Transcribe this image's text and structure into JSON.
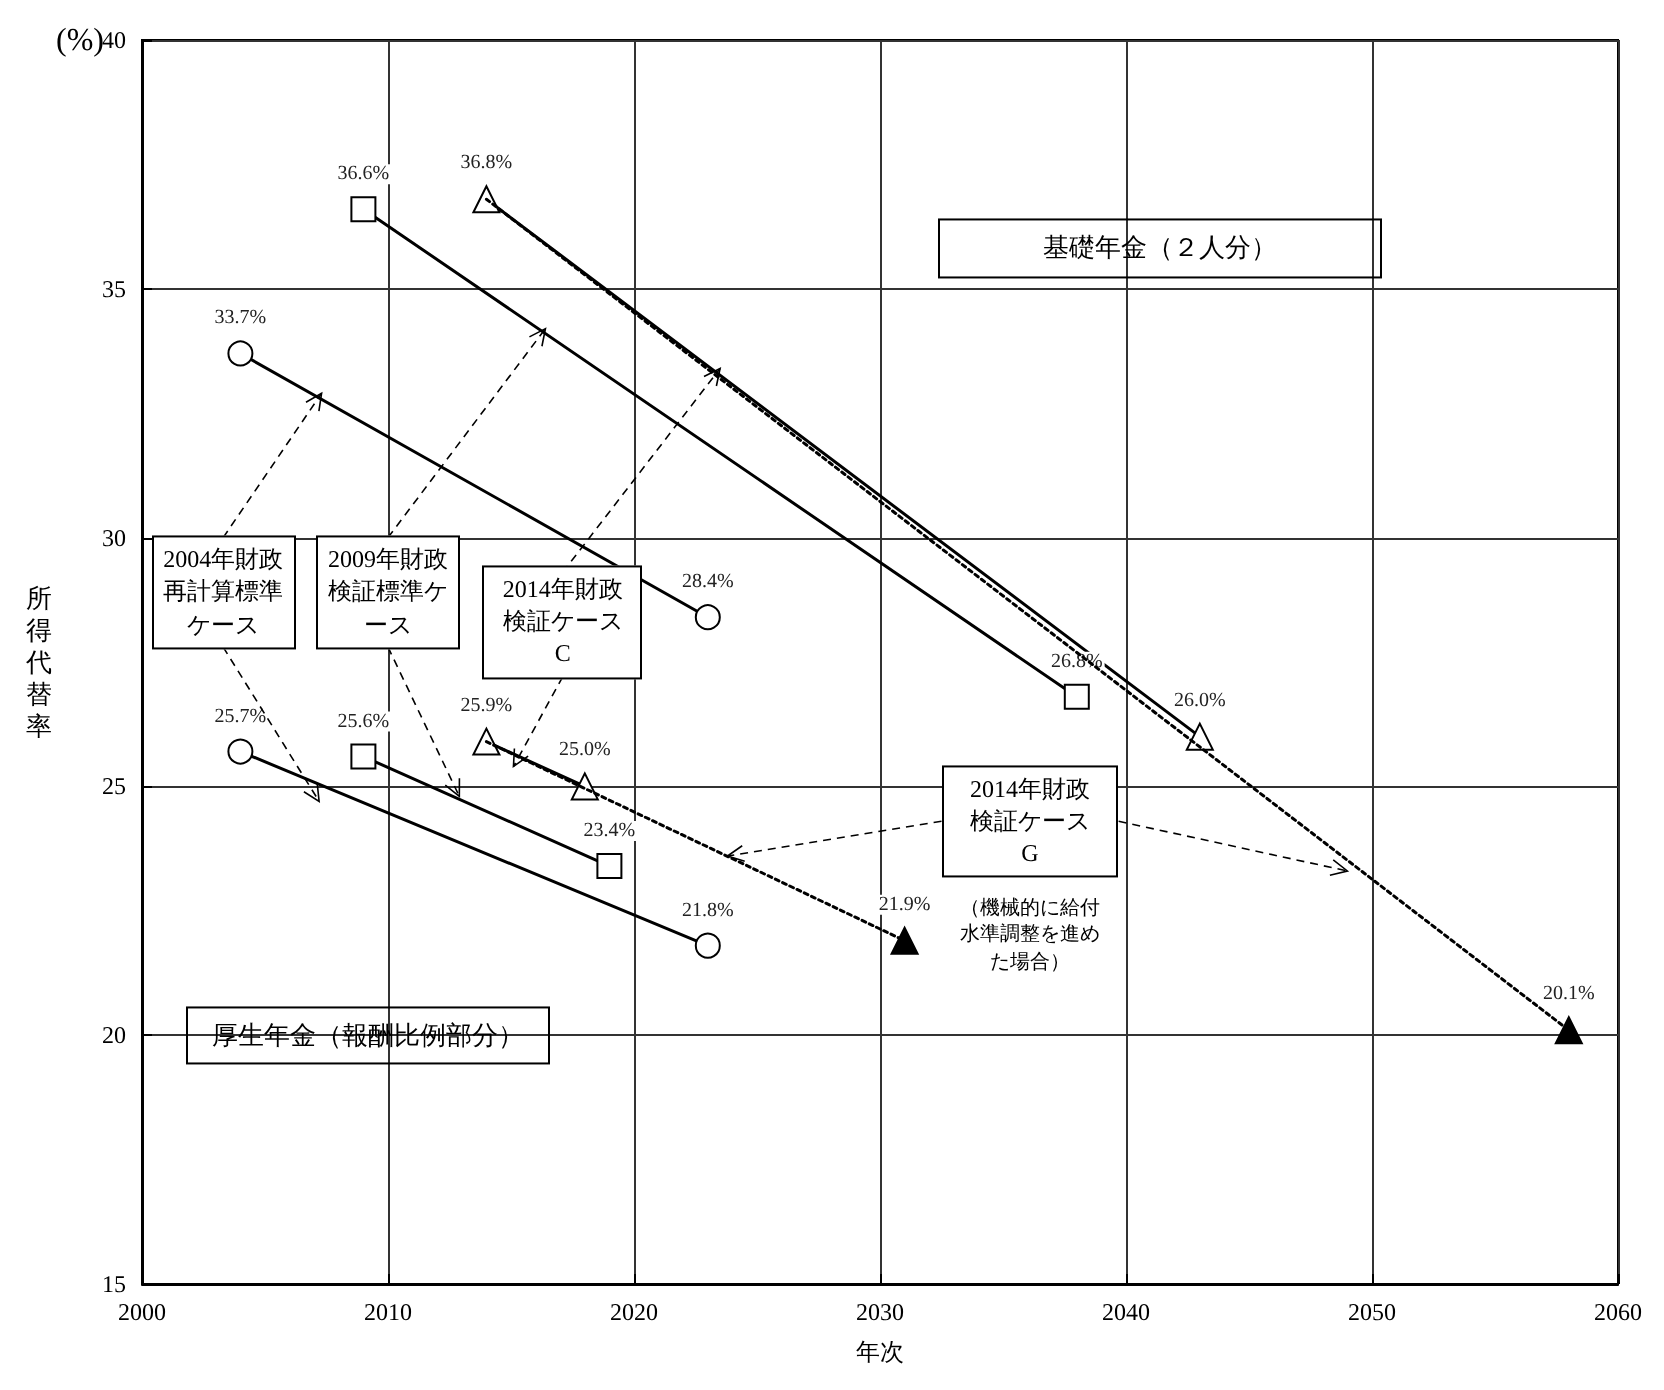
{
  "chart_data": {
    "type": "line",
    "ylabel": "所得代替率",
    "xlabel": "年次",
    "xlim": [
      2000,
      2060
    ],
    "xticks": [
      2000,
      2010,
      2020,
      2030,
      2040,
      2050,
      2060
    ],
    "ylim": [
      15,
      40
    ],
    "yticks": [
      15,
      20,
      25,
      30,
      35,
      40
    ],
    "grid": true,
    "series": [
      {
        "color": "#000000",
        "x": [
          2004,
          2023
        ],
        "values": [
          33.7,
          28.4
        ],
        "marker": "circle",
        "line_style": "solid",
        "value_labels": [
          "33.7%",
          "28.4%"
        ]
      },
      {
        "color": "#000000",
        "x": [
          2009,
          2038
        ],
        "values": [
          36.6,
          26.8
        ],
        "marker": "square",
        "line_style": "solid",
        "value_labels": [
          "36.6%",
          "26.8%"
        ]
      },
      {
        "color": "#000000",
        "x": [
          2014,
          2043
        ],
        "values": [
          36.8,
          26.0
        ],
        "marker": "triangle",
        "line_style": "solid",
        "value_labels": [
          "36.8%",
          "26.0%"
        ]
      },
      {
        "color": "#000000",
        "x": [
          2014,
          2058
        ],
        "values": [
          36.8,
          20.1
        ],
        "marker": "triangle",
        "line_style": "dotted",
        "value_labels": [
          null,
          "20.1%"
        ]
      },
      {
        "color": "#000000",
        "x": [
          2004,
          2023
        ],
        "values": [
          25.7,
          21.8
        ],
        "marker": "circle",
        "line_style": "solid",
        "value_labels": [
          "25.7%",
          "21.8%"
        ]
      },
      {
        "color": "#000000",
        "x": [
          2009,
          2019
        ],
        "values": [
          25.6,
          23.4
        ],
        "marker": "square",
        "line_style": "solid",
        "value_labels": [
          "25.6%",
          "23.4%"
        ]
      },
      {
        "color": "#000000",
        "x": [
          2014,
          2018
        ],
        "values": [
          25.9,
          25.0
        ],
        "marker": "triangle",
        "line_style": "solid",
        "value_labels": [
          "25.9%",
          "25.0%"
        ]
      },
      {
        "color": "#000000",
        "x": [
          2014,
          2031
        ],
        "values": [
          25.9,
          21.9
        ],
        "marker": "triangle",
        "line_style": "dotted",
        "value_labels": [
          null,
          "21.9%"
        ]
      }
    ],
    "annotations": [
      "(%)",
      "基礎年金（２人分）",
      "厚生年金（報酬比例部分）",
      {
        "text": "2004年財政再計算標準ケース",
        "x": 2007.3,
        "y": 32.9
      },
      {
        "text": "2009年財政検証標準ケース",
        "x": 2016.4,
        "y": 34.2
      },
      {
        "text": "2014年財政検証ケースC",
        "x": 2023.5,
        "y": 33.4
      },
      {
        "text": "2014年財政検証ケースG",
        "x": 2023.8,
        "y": 23.6
      },
      "（機械的に給付水準調整を進めた場合）"
    ]
  }
}
